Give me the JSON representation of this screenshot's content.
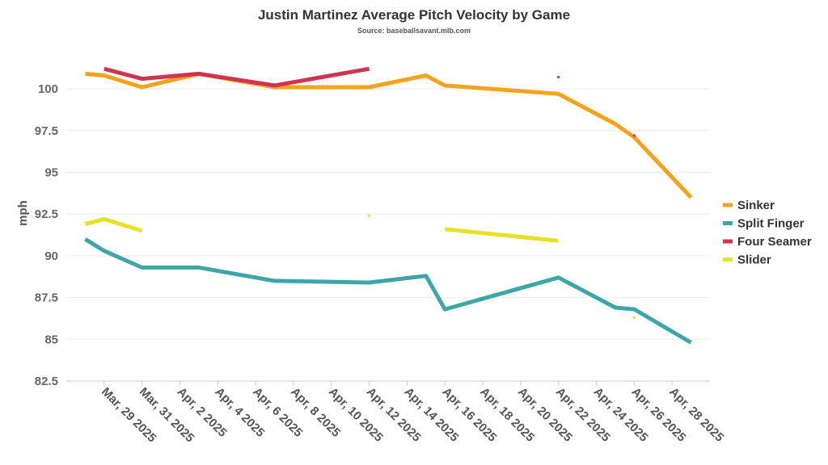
{
  "chart_data": {
    "type": "line",
    "title": "Justin Martinez Average Pitch Velocity by Game",
    "subtitle": "Source: baseballsavant.mlb.com",
    "ylabel": "mph",
    "xlabel": "",
    "xlim": [
      "2025-03-27",
      "2025-04-30"
    ],
    "ylim": [
      82.5,
      103
    ],
    "yticks": [
      82.5,
      85,
      87.5,
      90,
      92.5,
      95,
      97.5,
      100
    ],
    "xticks": [
      "2025-03-29",
      "2025-03-31",
      "2025-04-02",
      "2025-04-04",
      "2025-04-06",
      "2025-04-08",
      "2025-04-10",
      "2025-04-12",
      "2025-04-14",
      "2025-04-16",
      "2025-04-18",
      "2025-04-20",
      "2025-04-22",
      "2025-04-24",
      "2025-04-26",
      "2025-04-28"
    ],
    "xtick_labels": [
      "Mar, 29 2025",
      "Mar, 31 2025",
      "Apr, 2 2025",
      "Apr, 4 2025",
      "Apr, 6 2025",
      "Apr, 8 2025",
      "Apr, 10 2025",
      "Apr, 12 2025",
      "Apr, 14 2025",
      "Apr, 16 2025",
      "Apr, 18 2025",
      "Apr, 20 2025",
      "Apr, 22 2025",
      "Apr, 24 2025",
      "Apr, 26 2025",
      "Apr, 28 2025"
    ],
    "grid": true,
    "legend_position": "right",
    "series": [
      {
        "name": "Sinker",
        "color": "#F5A21C",
        "points": [
          [
            "2025-03-28",
            100.9
          ],
          [
            "2025-03-29",
            100.8
          ],
          [
            "2025-03-31",
            100.1
          ],
          [
            "2025-04-03",
            100.9
          ],
          [
            "2025-04-07",
            100.1
          ],
          [
            "2025-04-12",
            100.1
          ],
          [
            "2025-04-15",
            100.8
          ],
          [
            "2025-04-16",
            100.2
          ],
          [
            "2025-04-22",
            99.7
          ],
          [
            "2025-04-25",
            97.9
          ],
          [
            "2025-04-26",
            97.1
          ],
          [
            "2025-04-29",
            93.5
          ]
        ]
      },
      {
        "name": "Split Finger",
        "color": "#3FA6A6",
        "points": [
          [
            "2025-03-28",
            91.0
          ],
          [
            "2025-03-29",
            90.3
          ],
          [
            "2025-03-31",
            89.3
          ],
          [
            "2025-04-03",
            89.3
          ],
          [
            "2025-04-07",
            88.5
          ],
          [
            "2025-04-12",
            88.4
          ],
          [
            "2025-04-15",
            88.8
          ],
          [
            "2025-04-16",
            86.8
          ],
          [
            "2025-04-22",
            88.7
          ],
          [
            "2025-04-25",
            86.9
          ],
          [
            "2025-04-26",
            86.8
          ],
          [
            "2025-04-29",
            84.8
          ]
        ]
      },
      {
        "name": "Four Seamer",
        "color": "#D0354F",
        "points": [
          [
            "2025-03-29",
            101.2
          ],
          [
            "2025-03-31",
            100.6
          ],
          [
            "2025-04-03",
            100.9
          ],
          [
            "2025-04-07",
            100.2
          ],
          [
            "2025-04-12",
            101.2
          ],
          null,
          [
            "2025-04-22",
            100.7
          ],
          null,
          [
            "2025-04-26",
            97.2
          ]
        ]
      },
      {
        "name": "Slider",
        "color": "#E6E227",
        "points": [
          [
            "2025-03-28",
            91.9
          ],
          [
            "2025-03-29",
            92.2
          ],
          [
            "2025-03-31",
            91.5
          ],
          null,
          [
            "2025-04-12",
            92.4
          ],
          null,
          [
            "2025-04-16",
            91.6
          ],
          [
            "2025-04-22",
            90.9
          ],
          null,
          [
            "2025-04-26",
            86.3
          ]
        ]
      }
    ]
  }
}
